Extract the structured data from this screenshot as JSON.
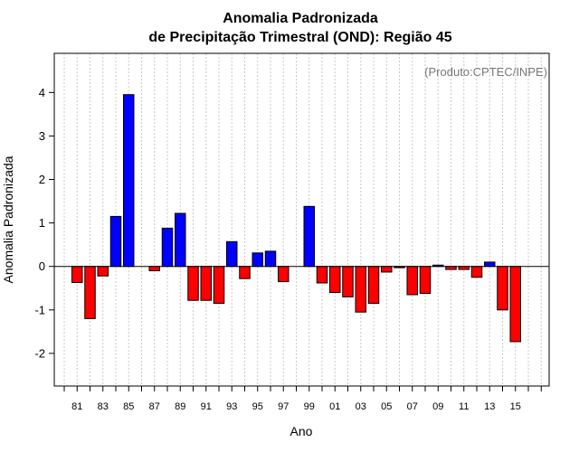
{
  "chart_data": {
    "type": "bar",
    "title_line1": "Anomalia Padronizada",
    "title_line2": "de Precipitação Trimestral (OND): Região 45",
    "xlabel": "Ano",
    "ylabel": "Anomalia Padronizada",
    "annotation": "(Produto:CPTEC/INPE)",
    "ylim": [
      -2.75,
      4.9
    ],
    "yticks": [
      -2,
      -1,
      0,
      1,
      2,
      3,
      4
    ],
    "positive_color": "#0000ff",
    "negative_color": "#ff0000",
    "categories": [
      "80",
      "81",
      "82",
      "83",
      "84",
      "85",
      "86",
      "87",
      "88",
      "89",
      "90",
      "91",
      "92",
      "93",
      "94",
      "95",
      "96",
      "97",
      "98",
      "99",
      "00",
      "01",
      "02",
      "03",
      "04",
      "05",
      "06",
      "07",
      "08",
      "09",
      "10",
      "11",
      "12",
      "13",
      "14",
      "15",
      "16",
      "17"
    ],
    "values": [
      0,
      -0.37,
      -1.2,
      -0.22,
      1.15,
      3.95,
      0,
      -0.1,
      0.88,
      1.22,
      -0.78,
      -0.78,
      -0.85,
      0.57,
      -0.28,
      0.31,
      0.35,
      -0.35,
      0,
      1.38,
      -0.38,
      -0.6,
      -0.7,
      -1.05,
      -0.85,
      -0.13,
      -0.03,
      -0.65,
      -0.62,
      0.03,
      -0.07,
      -0.07,
      -0.25,
      0.1,
      -1.0,
      -1.73,
      0,
      0
    ],
    "xtick_labels": [
      "81",
      "83",
      "85",
      "87",
      "89",
      "91",
      "93",
      "95",
      "97",
      "99",
      "01",
      "03",
      "05",
      "07",
      "09",
      "11",
      "13",
      "15"
    ]
  }
}
